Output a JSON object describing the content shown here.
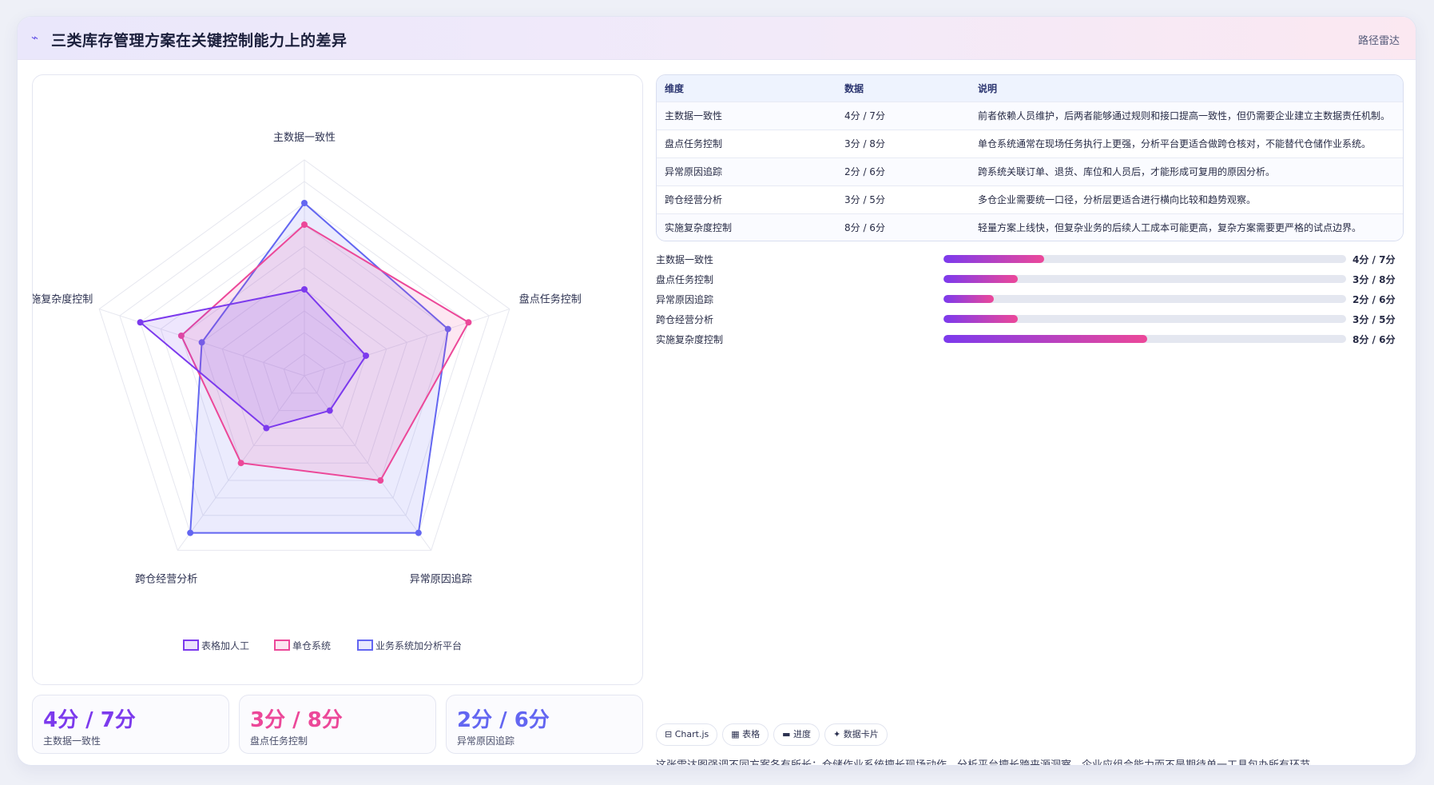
{
  "header": {
    "icon": "sparkline-icon",
    "title": "三类库存管理方案在关键控制能力上的差异",
    "tag": "路径雷达"
  },
  "chart_data": {
    "type": "radar",
    "title": "",
    "axes": [
      "主数据一致性",
      "盘点任务控制",
      "异常原因追踪",
      "跨仓经营分析",
      "实施复杂度控制"
    ],
    "range": [
      0,
      10
    ],
    "grid_rings": 10,
    "series": [
      {
        "name": "表格加人工",
        "values": [
          4,
          3,
          2,
          3,
          8
        ],
        "color": "#7c3aed"
      },
      {
        "name": "单仓系统",
        "values": [
          7,
          8,
          6,
          5,
          6
        ],
        "color": "#ec4899"
      },
      {
        "name": "业务系统加分析平台",
        "values": [
          8,
          7,
          9,
          9,
          5
        ],
        "color": "#6366f1"
      }
    ],
    "legend_position": "bottom"
  },
  "stats": [
    {
      "value": "4分 / 7分",
      "label": "主数据一致性",
      "color": "#7c3aed"
    },
    {
      "value": "3分 / 8分",
      "label": "盘点任务控制",
      "color": "#ec4899"
    },
    {
      "value": "2分 / 6分",
      "label": "异常原因追踪",
      "color": "#6366f1"
    }
  ],
  "table": {
    "headers": [
      "维度",
      "数据",
      "说明"
    ],
    "rows": [
      [
        "主数据一致性",
        "4分 / 7分",
        "前者依赖人员维护，后两者能够通过规则和接口提高一致性，但仍需要企业建立主数据责任机制。"
      ],
      [
        "盘点任务控制",
        "3分 / 8分",
        "单仓系统通常在现场任务执行上更强，分析平台更适合做跨仓核对，不能替代仓储作业系统。"
      ],
      [
        "异常原因追踪",
        "2分 / 6分",
        "跨系统关联订单、退货、库位和人员后，才能形成可复用的原因分析。"
      ],
      [
        "跨仓经营分析",
        "3分 / 5分",
        "多仓企业需要统一口径，分析层更适合进行横向比较和趋势观察。"
      ],
      [
        "实施复杂度控制",
        "8分 / 6分",
        "轻量方案上线快，但复杂业务的后续人工成本可能更高，复杂方案需要更严格的试点边界。"
      ]
    ]
  },
  "bars": [
    {
      "name": "主数据一致性",
      "value": "4分 / 7分",
      "fill": 0.25
    },
    {
      "name": "盘点任务控制",
      "value": "3分 / 8分",
      "fill": 0.185
    },
    {
      "name": "异常原因追踪",
      "value": "2分 / 6分",
      "fill": 0.125
    },
    {
      "name": "跨仓经营分析",
      "value": "3分 / 5分",
      "fill": 0.185
    },
    {
      "name": "实施复杂度控制",
      "value": "8分 / 6分",
      "fill": 0.505
    }
  ],
  "chips": [
    "⊟ Chart.js",
    "▦ 表格",
    "▬ 进度",
    "✦ 数据卡片"
  ],
  "note": "这张雷达图强调不同方案各有所长：仓储作业系统擅长现场动作，分析平台擅长跨来源洞察，企业应组合能力而不是期待单一工具包办所有环节。"
}
